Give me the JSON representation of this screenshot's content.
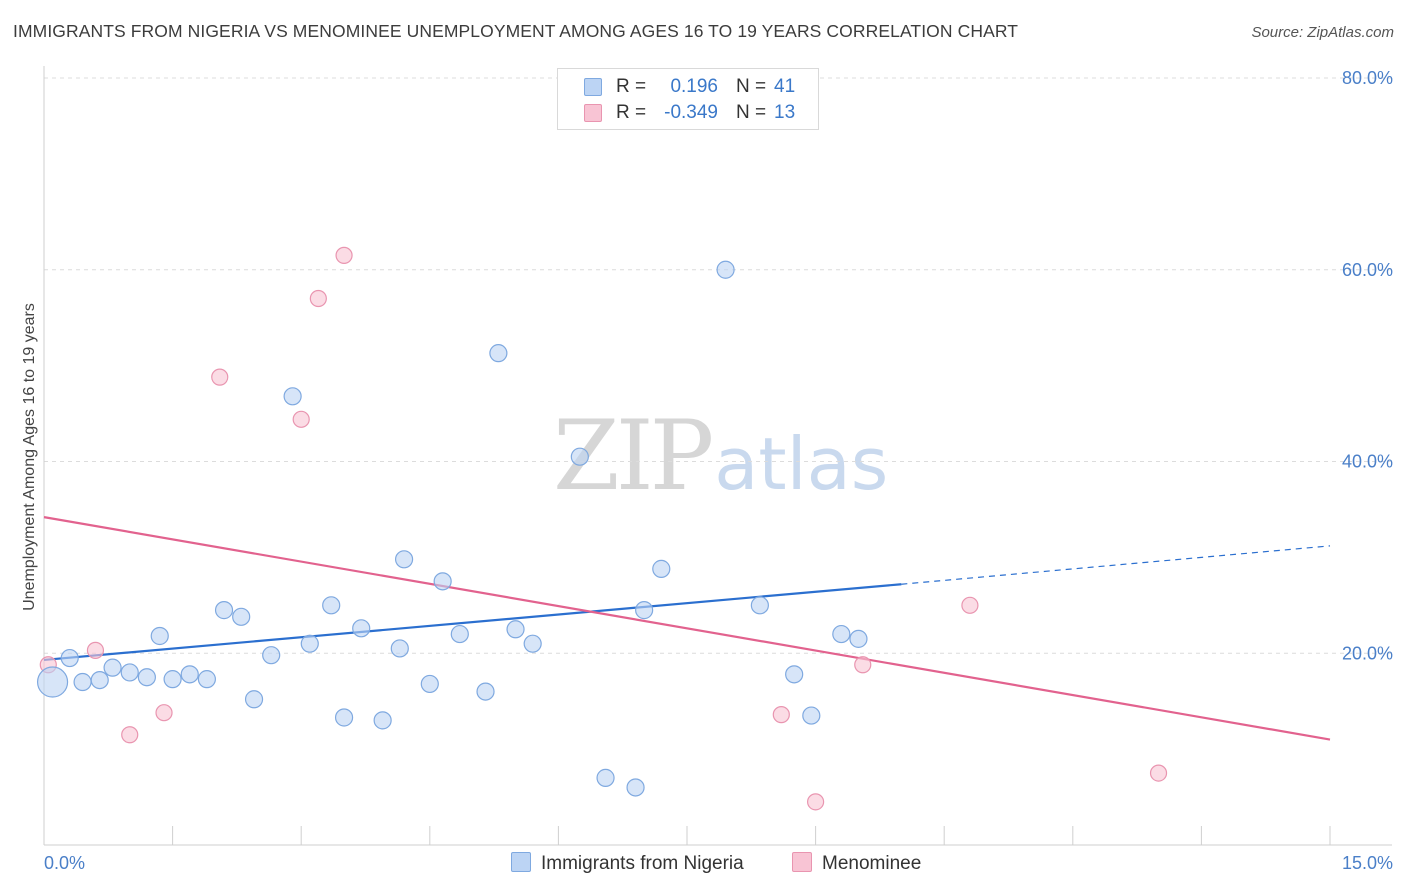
{
  "header": {
    "title": "IMMIGRANTS FROM NIGERIA VS MENOMINEE UNEMPLOYMENT AMONG AGES 16 TO 19 YEARS CORRELATION CHART",
    "source": "Source: ZipAtlas.com"
  },
  "watermark": {
    "zip": "ZIP",
    "atlas": "atlas"
  },
  "legend_top": {
    "rows": [
      {
        "r_label": "R =",
        "r_value": "0.196",
        "n_label": "N =",
        "n_value": "41"
      },
      {
        "r_label": "R =",
        "r_value": "-0.349",
        "n_label": "N =",
        "n_value": "13"
      }
    ]
  },
  "legend_bottom": {
    "items": [
      {
        "label": "Immigrants from Nigeria"
      },
      {
        "label": "Menominee"
      }
    ]
  },
  "colors": {
    "series1_fill": "#bcd4f4",
    "series1_stroke": "#7fa9e0",
    "series1_line": "#2b6fcf",
    "series2_fill": "#f8c4d4",
    "series2_stroke": "#e995b0",
    "series2_line": "#e2628e",
    "grid": "#dcdcdc",
    "tick_label": "#4a7fc8"
  },
  "chart_data": {
    "type": "scatter",
    "title": "IMMIGRANTS FROM NIGERIA VS MENOMINEE UNEMPLOYMENT AMONG AGES 16 TO 19 YEARS CORRELATION CHART",
    "xlabel": "",
    "ylabel": "Unemployment Among Ages 16 to 19 years",
    "xlim": [
      0,
      15
    ],
    "ylim": [
      0,
      80
    ],
    "x_tick_labels": [
      "0.0%",
      "15.0%"
    ],
    "y_ticks": [
      20,
      40,
      60,
      80
    ],
    "y_tick_labels": [
      "20.0%",
      "40.0%",
      "60.0%",
      "80.0%"
    ],
    "grid": true,
    "legend_position": "top-center",
    "series": [
      {
        "name": "Immigrants from Nigeria",
        "r": 0.196,
        "n": 41,
        "points": [
          {
            "x": 0.1,
            "y": 17.0,
            "big": true
          },
          {
            "x": 0.3,
            "y": 19.5
          },
          {
            "x": 0.45,
            "y": 17.0
          },
          {
            "x": 0.65,
            "y": 17.2
          },
          {
            "x": 0.8,
            "y": 18.5
          },
          {
            "x": 1.0,
            "y": 18.0
          },
          {
            "x": 1.2,
            "y": 17.5
          },
          {
            "x": 1.35,
            "y": 21.8
          },
          {
            "x": 1.5,
            "y": 17.3
          },
          {
            "x": 1.7,
            "y": 17.8
          },
          {
            "x": 1.9,
            "y": 17.3
          },
          {
            "x": 2.1,
            "y": 24.5
          },
          {
            "x": 2.3,
            "y": 23.8
          },
          {
            "x": 2.45,
            "y": 15.2
          },
          {
            "x": 2.65,
            "y": 19.8
          },
          {
            "x": 2.9,
            "y": 46.8
          },
          {
            "x": 3.1,
            "y": 21.0
          },
          {
            "x": 3.35,
            "y": 25.0
          },
          {
            "x": 3.5,
            "y": 13.3
          },
          {
            "x": 3.7,
            "y": 22.6
          },
          {
            "x": 3.95,
            "y": 13.0
          },
          {
            "x": 4.15,
            "y": 20.5
          },
          {
            "x": 4.2,
            "y": 29.8
          },
          {
            "x": 4.5,
            "y": 16.8
          },
          {
            "x": 4.65,
            "y": 27.5
          },
          {
            "x": 4.85,
            "y": 22.0
          },
          {
            "x": 5.15,
            "y": 16.0
          },
          {
            "x": 5.3,
            "y": 51.3
          },
          {
            "x": 5.5,
            "y": 22.5
          },
          {
            "x": 5.7,
            "y": 21.0
          },
          {
            "x": 6.25,
            "y": 40.5
          },
          {
            "x": 6.55,
            "y": 7.0
          },
          {
            "x": 6.9,
            "y": 6.0
          },
          {
            "x": 7.0,
            "y": 24.5
          },
          {
            "x": 7.2,
            "y": 28.8
          },
          {
            "x": 7.95,
            "y": 60.0
          },
          {
            "x": 8.35,
            "y": 25.0
          },
          {
            "x": 8.75,
            "y": 17.8
          },
          {
            "x": 8.95,
            "y": 13.5
          },
          {
            "x": 9.3,
            "y": 22.0
          },
          {
            "x": 9.5,
            "y": 21.5
          }
        ],
        "trend": {
          "x_start": 0,
          "y_start": 19.3,
          "x_solid_end": 10.0,
          "y_solid_end": 27.2,
          "x_end": 15,
          "y_end": 31.2
        }
      },
      {
        "name": "Menominee",
        "r": -0.349,
        "n": 13,
        "points": [
          {
            "x": 0.05,
            "y": 18.8
          },
          {
            "x": 0.6,
            "y": 20.3
          },
          {
            "x": 1.0,
            "y": 11.5
          },
          {
            "x": 1.4,
            "y": 13.8
          },
          {
            "x": 2.05,
            "y": 48.8
          },
          {
            "x": 3.0,
            "y": 44.4
          },
          {
            "x": 3.2,
            "y": 57.0
          },
          {
            "x": 3.5,
            "y": 61.5
          },
          {
            "x": 8.6,
            "y": 13.6
          },
          {
            "x": 9.0,
            "y": 4.5
          },
          {
            "x": 9.55,
            "y": 18.8
          },
          {
            "x": 10.8,
            "y": 25.0
          },
          {
            "x": 13.0,
            "y": 7.5
          }
        ],
        "trend": {
          "x_start": 0,
          "y_start": 34.2,
          "x_end": 15,
          "y_end": 11.0
        }
      }
    ]
  }
}
